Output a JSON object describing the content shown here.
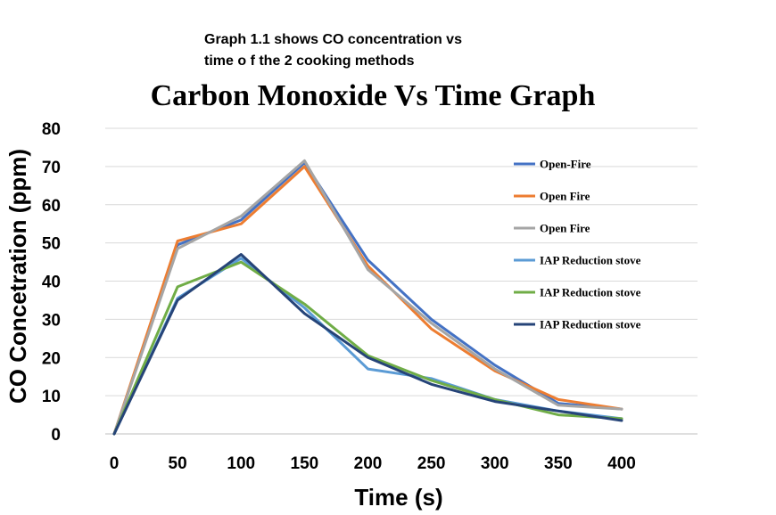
{
  "caption": {
    "line1": "Graph 1.1 shows CO concentration vs",
    "line2": "time o f the 2 cooking methods"
  },
  "chart_data": {
    "type": "line",
    "title": "Carbon Monoxide Vs Time Graph",
    "xlabel": "Time (s)",
    "ylabel": "CO Concetration (ppm)",
    "x": [
      0,
      50,
      100,
      150,
      200,
      250,
      300,
      350,
      400
    ],
    "xlim": [
      0,
      400
    ],
    "ylim": [
      0,
      80
    ],
    "yticks": [
      0,
      10,
      20,
      30,
      40,
      50,
      60,
      70,
      80
    ],
    "xticks": [
      0,
      50,
      100,
      150,
      200,
      250,
      300,
      350,
      400
    ],
    "grid": "horizontal",
    "legend_position": "right",
    "series": [
      {
        "name": "Open-Fire",
        "color": "#4472C4",
        "values": [
          0,
          49.5,
          56,
          71,
          45.5,
          30,
          18,
          8,
          6.5
        ]
      },
      {
        "name": "Open Fire",
        "color": "#ED7D31",
        "values": [
          0,
          50.5,
          55,
          70,
          44,
          27.5,
          16.5,
          9,
          6.5
        ]
      },
      {
        "name": "Open Fire",
        "color": "#A5A5A5",
        "values": [
          0,
          48.5,
          57,
          71.5,
          43,
          29,
          17,
          7.5,
          6.5
        ]
      },
      {
        "name": "IAP Reduction stove",
        "color": "#5B9BD5",
        "values": [
          0,
          35.5,
          46,
          33,
          17,
          14.5,
          9,
          6,
          4
        ]
      },
      {
        "name": "IAP Reduction stove",
        "color": "#70AD47",
        "values": [
          0,
          38.5,
          45,
          34,
          20.5,
          14,
          9,
          5,
          4
        ]
      },
      {
        "name": "IAP Reduction stove",
        "color": "#264478",
        "values": [
          0,
          35,
          47,
          31.5,
          20,
          13,
          8.5,
          6,
          3.5
        ]
      }
    ]
  }
}
